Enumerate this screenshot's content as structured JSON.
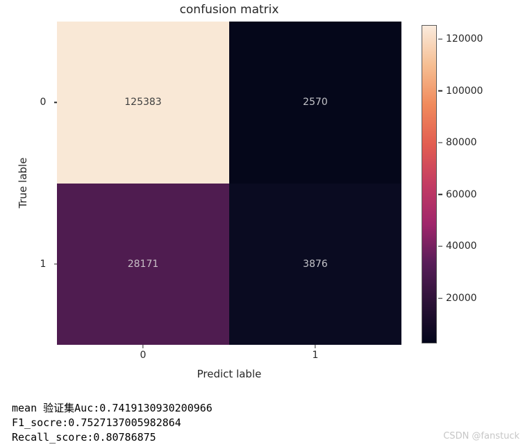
{
  "chart_data": {
    "type": "heatmap",
    "title": "confusion matrix",
    "xlabel": "Predict lable",
    "ylabel": "True lable",
    "x_ticklabels": [
      "0",
      "1"
    ],
    "y_ticklabels": [
      "0",
      "1"
    ],
    "matrix": [
      [
        125383,
        2570
      ],
      [
        28171,
        3876
      ]
    ],
    "cells": [
      {
        "row": 0,
        "col": 0,
        "value": "125383",
        "color": "#f9e8d6",
        "text_color": "#3f3f3f"
      },
      {
        "row": 0,
        "col": 1,
        "value": "2570",
        "color": "#05071a",
        "text_color": "#c3c3c8"
      },
      {
        "row": 1,
        "col": 0,
        "value": "28171",
        "color": "#4f1c50",
        "text_color": "#c9c0c7"
      },
      {
        "row": 1,
        "col": 1,
        "value": "3876",
        "color": "#0a0b21",
        "text_color": "#c3c3c8"
      }
    ],
    "colorbar": {
      "vmin": 2570,
      "vmax": 125383,
      "ticks": [
        20000,
        40000,
        60000,
        80000,
        100000,
        120000
      ],
      "colormap": "rocket",
      "gradient_low_to_high": [
        "#03051a",
        "#2b1236",
        "#571d58",
        "#a0266b",
        "#c33c63",
        "#e25d51",
        "#f08a5c",
        "#f6be92",
        "#faebdd"
      ]
    },
    "legend": "none",
    "grid": false
  },
  "footer": {
    "lines": [
      "mean 验证集Auc:0.7419130930200966",
      "F1_socre:0.7527137005982864",
      "Recall_score:0.80786875"
    ]
  },
  "watermark": "CSDN @fanstuck"
}
